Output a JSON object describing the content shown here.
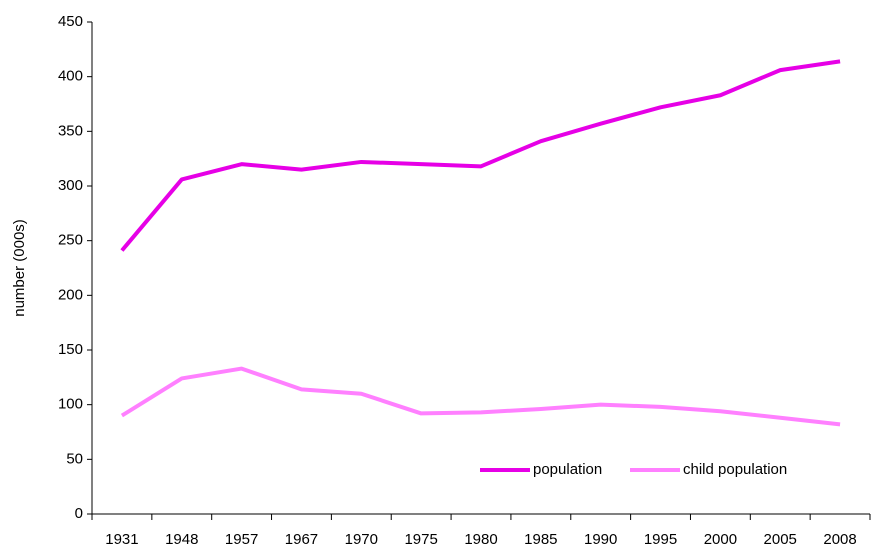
{
  "chart_data": {
    "type": "line",
    "ylabel": "number (000s)",
    "categories": [
      "1931",
      "1948",
      "1957",
      "1967",
      "1970",
      "1975",
      "1980",
      "1985",
      "1990",
      "1995",
      "2000",
      "2005",
      "2008"
    ],
    "series": [
      {
        "name": "population",
        "color": "#e600e6",
        "values": [
          241,
          306,
          320,
          315,
          322,
          320,
          318,
          341,
          357,
          372,
          383,
          406,
          414
        ]
      },
      {
        "name": "child population",
        "color": "#ff80ff",
        "values": [
          90,
          124,
          133,
          114,
          110,
          92,
          93,
          96,
          100,
          98,
          94,
          88,
          82
        ]
      }
    ],
    "ylim": [
      0,
      450
    ],
    "yticks": [
      0,
      50,
      100,
      150,
      200,
      250,
      300,
      350,
      400,
      450
    ],
    "legend": "lower right"
  }
}
